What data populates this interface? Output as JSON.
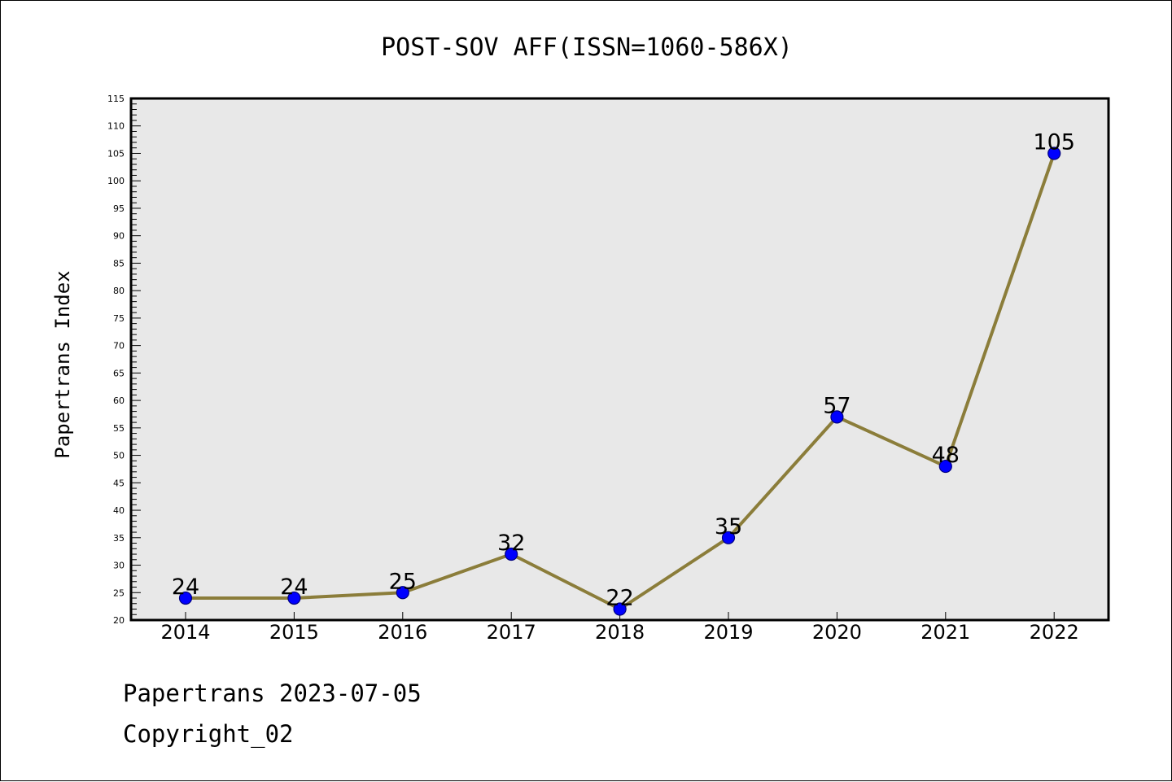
{
  "chart_data": {
    "type": "line",
    "title": "POST-SOV AFF(ISSN=1060-586X)",
    "xlabel": "",
    "ylabel": "Papertrans Index",
    "categories": [
      "2014",
      "2015",
      "2016",
      "2017",
      "2018",
      "2019",
      "2020",
      "2021",
      "2022"
    ],
    "series": [
      {
        "values": [
          24,
          24,
          25,
          32,
          22,
          35,
          57,
          48,
          105
        ]
      }
    ],
    "ylim": [
      20,
      115
    ],
    "y_major_step": 5,
    "y_minor_step": 1,
    "grid": false,
    "legend": "none",
    "data_labels": true,
    "colors": {
      "plot_background": "#e8e8e8",
      "line": "#8b7d3a",
      "marker_fill": "#0000ff",
      "marker_edge": "#000080"
    }
  },
  "footer": {
    "credit": "Papertrans 2023-07-05",
    "copyright": "Copyright_02"
  }
}
